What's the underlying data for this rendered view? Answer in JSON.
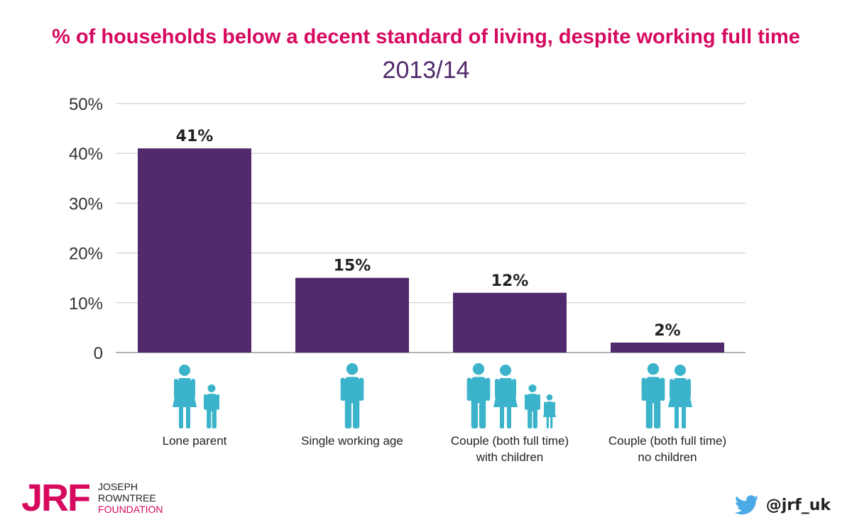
{
  "title": "% of households below a decent standard of living, despite working full time",
  "subtitle": "2013/14",
  "colors": {
    "title": "#d6095f",
    "subtitle": "#512a6b",
    "bar": "#512a6b",
    "icon": "#3bb3cb",
    "logo": "#d6095f",
    "twitter": "#4aa9e6"
  },
  "chart_data": {
    "type": "bar",
    "title": "% of households below a decent standard of living, despite working full time",
    "subtitle": "2013/14",
    "categories": [
      [
        "Lone parent"
      ],
      [
        "Single working age"
      ],
      [
        "Couple (both full time)",
        "with children"
      ],
      [
        "Couple (both full time)",
        "no children"
      ]
    ],
    "category_icons": [
      "parent-child-icon",
      "single-adult-icon",
      "family-icon",
      "couple-icon"
    ],
    "values": [
      41,
      15,
      12,
      2
    ],
    "data_labels": [
      "41%",
      "15%",
      "12%",
      "2%"
    ],
    "yticks": [
      "0",
      "10%",
      "20%",
      "30%",
      "40%",
      "50%"
    ],
    "ytick_values": [
      0,
      10,
      20,
      30,
      40,
      50
    ],
    "ylim": [
      0,
      50
    ],
    "grid": true,
    "xlabel": "",
    "ylabel": ""
  },
  "footer": {
    "logo_mark": "JRF",
    "logo_lines": [
      "JOSEPH",
      "ROWNTREE",
      "FOUNDATION"
    ],
    "handle": "@jrf_uk",
    "handle_icon": "twitter-bird-icon"
  }
}
